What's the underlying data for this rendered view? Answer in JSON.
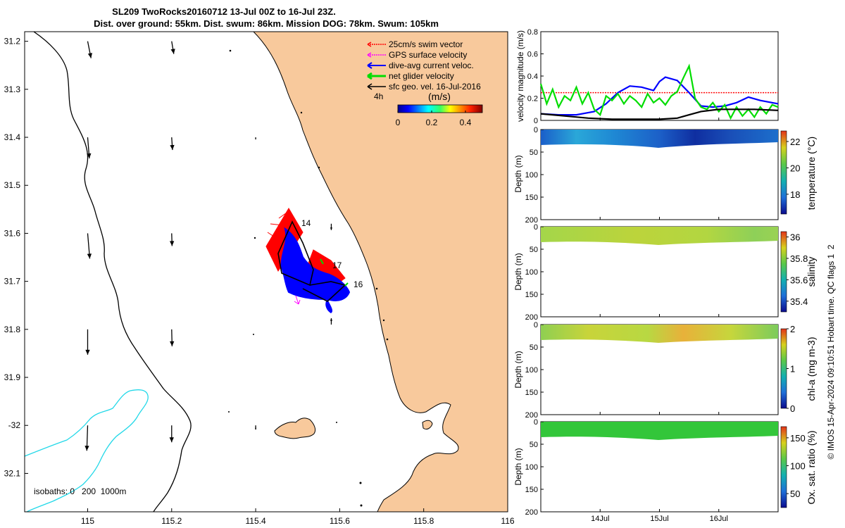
{
  "title_line1": "SL209 TwoRocks20160712 13-Jul 00Z to 16-Jul 23Z.",
  "title_line2": "Dist. over ground: 55km. Dist. swum: 86km. Mission DOG: 78km. Swum: 105km",
  "side_note": "© IMOS 15-Apr-2024 09:10:51 Hobart time. QC flags 1  2",
  "colors": {
    "land": "#f8c99c",
    "coast": "#000000",
    "isobath": "#22d8e8",
    "swim": "#ff0000",
    "gps": "#ff00ff",
    "dive_avg": "#0000ff",
    "net_glider": "#00dd00",
    "sfc_geo": "#000000"
  },
  "chart_data": [
    {
      "type": "scatter",
      "name": "map",
      "xlim": [
        114.85,
        116.0
      ],
      "ylim": [
        -32.18,
        -31.18
      ],
      "x_ticks": [
        115,
        115.2,
        115.4,
        115.6,
        115.8,
        116
      ],
      "x_tick_labels": [
        "115",
        "115.2",
        "115.4",
        "115.6",
        "115.8",
        "116"
      ],
      "y_ticks": [
        -31.2,
        -31.3,
        -31.4,
        -31.5,
        -31.6,
        -31.7,
        -31.8,
        -31.9,
        -32,
        -32.1
      ],
      "y_tick_labels": [
        "31.2",
        "31.3",
        "31.4",
        "31.5",
        "31.6",
        "31.7",
        "31.8",
        "31.9",
        "-32",
        "32.1"
      ],
      "legend": [
        {
          "label": "25cm/s swim vector",
          "color": "#ff0000"
        },
        {
          "label": "GPS surface velocity",
          "color": "#ff00ff"
        },
        {
          "label": "dive-avg current veloc.",
          "color": "#0000ff"
        },
        {
          "label": "net glider velocity",
          "color": "#00dd00"
        },
        {
          "label": "sfc geo. vel. 16-Jul-2016",
          "color": "#000000"
        }
      ],
      "arrow_time_label": "4h",
      "speed_colorbar": {
        "label": "(m/s)",
        "ticks": [
          0,
          0.2,
          0.4
        ],
        "range": [
          0,
          0.5
        ]
      },
      "day_labels": [
        {
          "text": "14",
          "lon": 115.505,
          "lat": -31.58
        },
        {
          "text": "17",
          "lon": 115.565,
          "lat": -31.665
        },
        {
          "text": "16",
          "lon": 115.625,
          "lat": -31.712
        }
      ],
      "isobath_label": "isobaths: 0   200  1000m",
      "geo_arrows": [
        {
          "lon": 115.0,
          "lat": -31.2,
          "u": 0.008,
          "v": -0.04
        },
        {
          "lon": 115.2,
          "lat": -31.2,
          "u": 0.005,
          "v": -0.03
        },
        {
          "lon": 115.0,
          "lat": -31.4,
          "u": 0.004,
          "v": -0.05
        },
        {
          "lon": 115.2,
          "lat": -31.4,
          "u": 0.002,
          "v": -0.03
        },
        {
          "lon": 115.0,
          "lat": -31.6,
          "u": 0.005,
          "v": -0.06
        },
        {
          "lon": 115.2,
          "lat": -31.6,
          "u": 0.001,
          "v": -0.03
        },
        {
          "lon": 115.0,
          "lat": -31.8,
          "u": 0.0,
          "v": -0.06
        },
        {
          "lon": 115.2,
          "lat": -31.8,
          "u": 0.001,
          "v": -0.04
        },
        {
          "lon": 115.0,
          "lat": -32.0,
          "u": -0.002,
          "v": -0.06
        },
        {
          "lon": 115.2,
          "lat": -32.0,
          "u": 0.0,
          "v": -0.04
        },
        {
          "lon": 115.4,
          "lat": -31.4,
          "u": 0.0,
          "v": -0.005
        },
        {
          "lon": 115.4,
          "lat": -32.0,
          "u": 0.0,
          "v": -0.01
        },
        {
          "lon": 115.58,
          "lat": -31.58,
          "u": 0.0,
          "v": -0.015
        },
        {
          "lon": 115.58,
          "lat": -31.79,
          "u": 0.0,
          "v": 0.015
        }
      ],
      "glider_track_dive_avg": [
        [
          115.49,
          -31.58
        ],
        [
          115.44,
          -31.66
        ],
        [
          115.43,
          -31.72
        ],
        [
          115.5,
          -31.74
        ],
        [
          115.59,
          -31.74
        ],
        [
          115.64,
          -31.72
        ],
        [
          115.6,
          -31.72
        ],
        [
          115.52,
          -31.69
        ],
        [
          115.5,
          -31.64
        ],
        [
          115.49,
          -31.58
        ]
      ],
      "glider_track_net": [
        [
          115.49,
          -31.58
        ],
        [
          115.47,
          -31.64
        ],
        [
          115.45,
          -31.69
        ],
        [
          115.49,
          -31.71
        ],
        [
          115.51,
          -31.72
        ],
        [
          115.55,
          -31.7
        ],
        [
          115.6,
          -31.7
        ],
        [
          115.63,
          -31.71
        ],
        [
          115.58,
          -31.75
        ],
        [
          115.49,
          -31.72
        ],
        [
          115.51,
          -31.66
        ],
        [
          115.49,
          -31.58
        ]
      ]
    },
    {
      "type": "line",
      "name": "velocity magnitude",
      "ylabel": "velocity magnitude (m/s)",
      "ylim": [
        0,
        0.8
      ],
      "y_ticks": [
        0,
        0.2,
        0.4,
        0.6,
        0.8
      ],
      "x_range_days": [
        13.0,
        17.0
      ],
      "series": [
        {
          "name": "25cm/s swim vector",
          "color": "#ff0000",
          "x": [
            13.0,
            17.0
          ],
          "values": [
            0.25,
            0.25
          ]
        },
        {
          "name": "dive-avg current veloc.",
          "color": "#0000ff",
          "x": [
            13.0,
            13.3,
            13.6,
            13.9,
            14.1,
            14.3,
            14.5,
            14.7,
            14.9,
            15.0,
            15.1,
            15.3,
            15.5,
            15.7,
            15.9,
            16.1,
            16.3,
            16.5,
            16.7,
            17.0
          ],
          "values": [
            0.06,
            0.05,
            0.05,
            0.08,
            0.15,
            0.25,
            0.31,
            0.3,
            0.27,
            0.35,
            0.39,
            0.36,
            0.25,
            0.13,
            0.12,
            0.13,
            0.16,
            0.21,
            0.18,
            0.15
          ]
        },
        {
          "name": "net glider velocity",
          "color": "#00dd00",
          "x": [
            13.0,
            13.1,
            13.2,
            13.3,
            13.4,
            13.5,
            13.6,
            13.7,
            13.8,
            13.9,
            14.0,
            14.1,
            14.2,
            14.3,
            14.4,
            14.5,
            14.6,
            14.7,
            14.8,
            14.9,
            15.0,
            15.1,
            15.2,
            15.3,
            15.4,
            15.5,
            15.6,
            15.7,
            15.8,
            15.9,
            16.0,
            16.1,
            16.2,
            16.3,
            16.4,
            16.5,
            16.6,
            16.7,
            16.8,
            16.9,
            17.0
          ],
          "values": [
            0.33,
            0.15,
            0.28,
            0.12,
            0.22,
            0.18,
            0.3,
            0.15,
            0.25,
            0.1,
            0.05,
            0.22,
            0.18,
            0.24,
            0.15,
            0.22,
            0.18,
            0.12,
            0.24,
            0.16,
            0.2,
            0.14,
            0.22,
            0.26,
            0.38,
            0.49,
            0.2,
            0.12,
            0.1,
            0.16,
            0.08,
            0.14,
            0.02,
            0.12,
            0.04,
            0.1,
            0.03,
            0.12,
            0.06,
            0.14,
            0.12
          ]
        },
        {
          "name": "sfc geo. vel.",
          "color": "#000000",
          "x": [
            13.0,
            13.4,
            13.8,
            14.2,
            14.6,
            15.0,
            15.3,
            15.5,
            15.7,
            16.0,
            16.3,
            16.6,
            17.0
          ],
          "values": [
            0.06,
            0.04,
            0.02,
            0.01,
            0.01,
            0.01,
            0.02,
            0.05,
            0.08,
            0.1,
            0.1,
            0.1,
            0.09
          ]
        }
      ]
    },
    {
      "type": "heatmap",
      "name": "temperature",
      "ylabel": "Depth (m)",
      "cbar_label": "temperature (°C)",
      "cbar_ticks": [
        18,
        20,
        22
      ],
      "cbar_range": [
        16.5,
        22.8
      ],
      "ylim": [
        0,
        200
      ],
      "y_ticks": [
        0,
        50,
        100,
        150,
        200
      ],
      "x_range_days": [
        13.0,
        17.0
      ]
    },
    {
      "type": "heatmap",
      "name": "salinity",
      "ylabel": "Depth (m)",
      "cbar_label": "salinity",
      "cbar_ticks": [
        35.4,
        35.6,
        35.8,
        36
      ],
      "cbar_range": [
        35.3,
        36.05
      ],
      "ylim": [
        0,
        200
      ],
      "y_ticks": [
        0,
        50,
        100,
        150,
        200
      ],
      "x_range_days": [
        13.0,
        17.0
      ]
    },
    {
      "type": "heatmap",
      "name": "chl-a",
      "ylabel": "Depth (m)",
      "cbar_label": "chl-a (mg m-3)",
      "cbar_ticks": [
        0,
        1,
        2
      ],
      "cbar_range": [
        0,
        2
      ],
      "ylim": [
        0,
        200
      ],
      "y_ticks": [
        0,
        50,
        100,
        150,
        200
      ],
      "x_range_days": [
        13.0,
        17.0
      ]
    },
    {
      "type": "heatmap",
      "name": "oxygen saturation",
      "ylabel": "Depth (m)",
      "cbar_label": "Ox. sat. ratio (%)",
      "cbar_ticks": [
        50,
        100,
        150
      ],
      "cbar_range": [
        25,
        170
      ],
      "ylim": [
        0,
        200
      ],
      "y_ticks": [
        0,
        50,
        100,
        150,
        200
      ],
      "x_range_days": [
        13.0,
        17.0
      ],
      "x_ticks": [
        14,
        15,
        16
      ],
      "x_tick_labels": [
        "14Jul",
        "15Jul",
        "16Jul"
      ]
    }
  ]
}
